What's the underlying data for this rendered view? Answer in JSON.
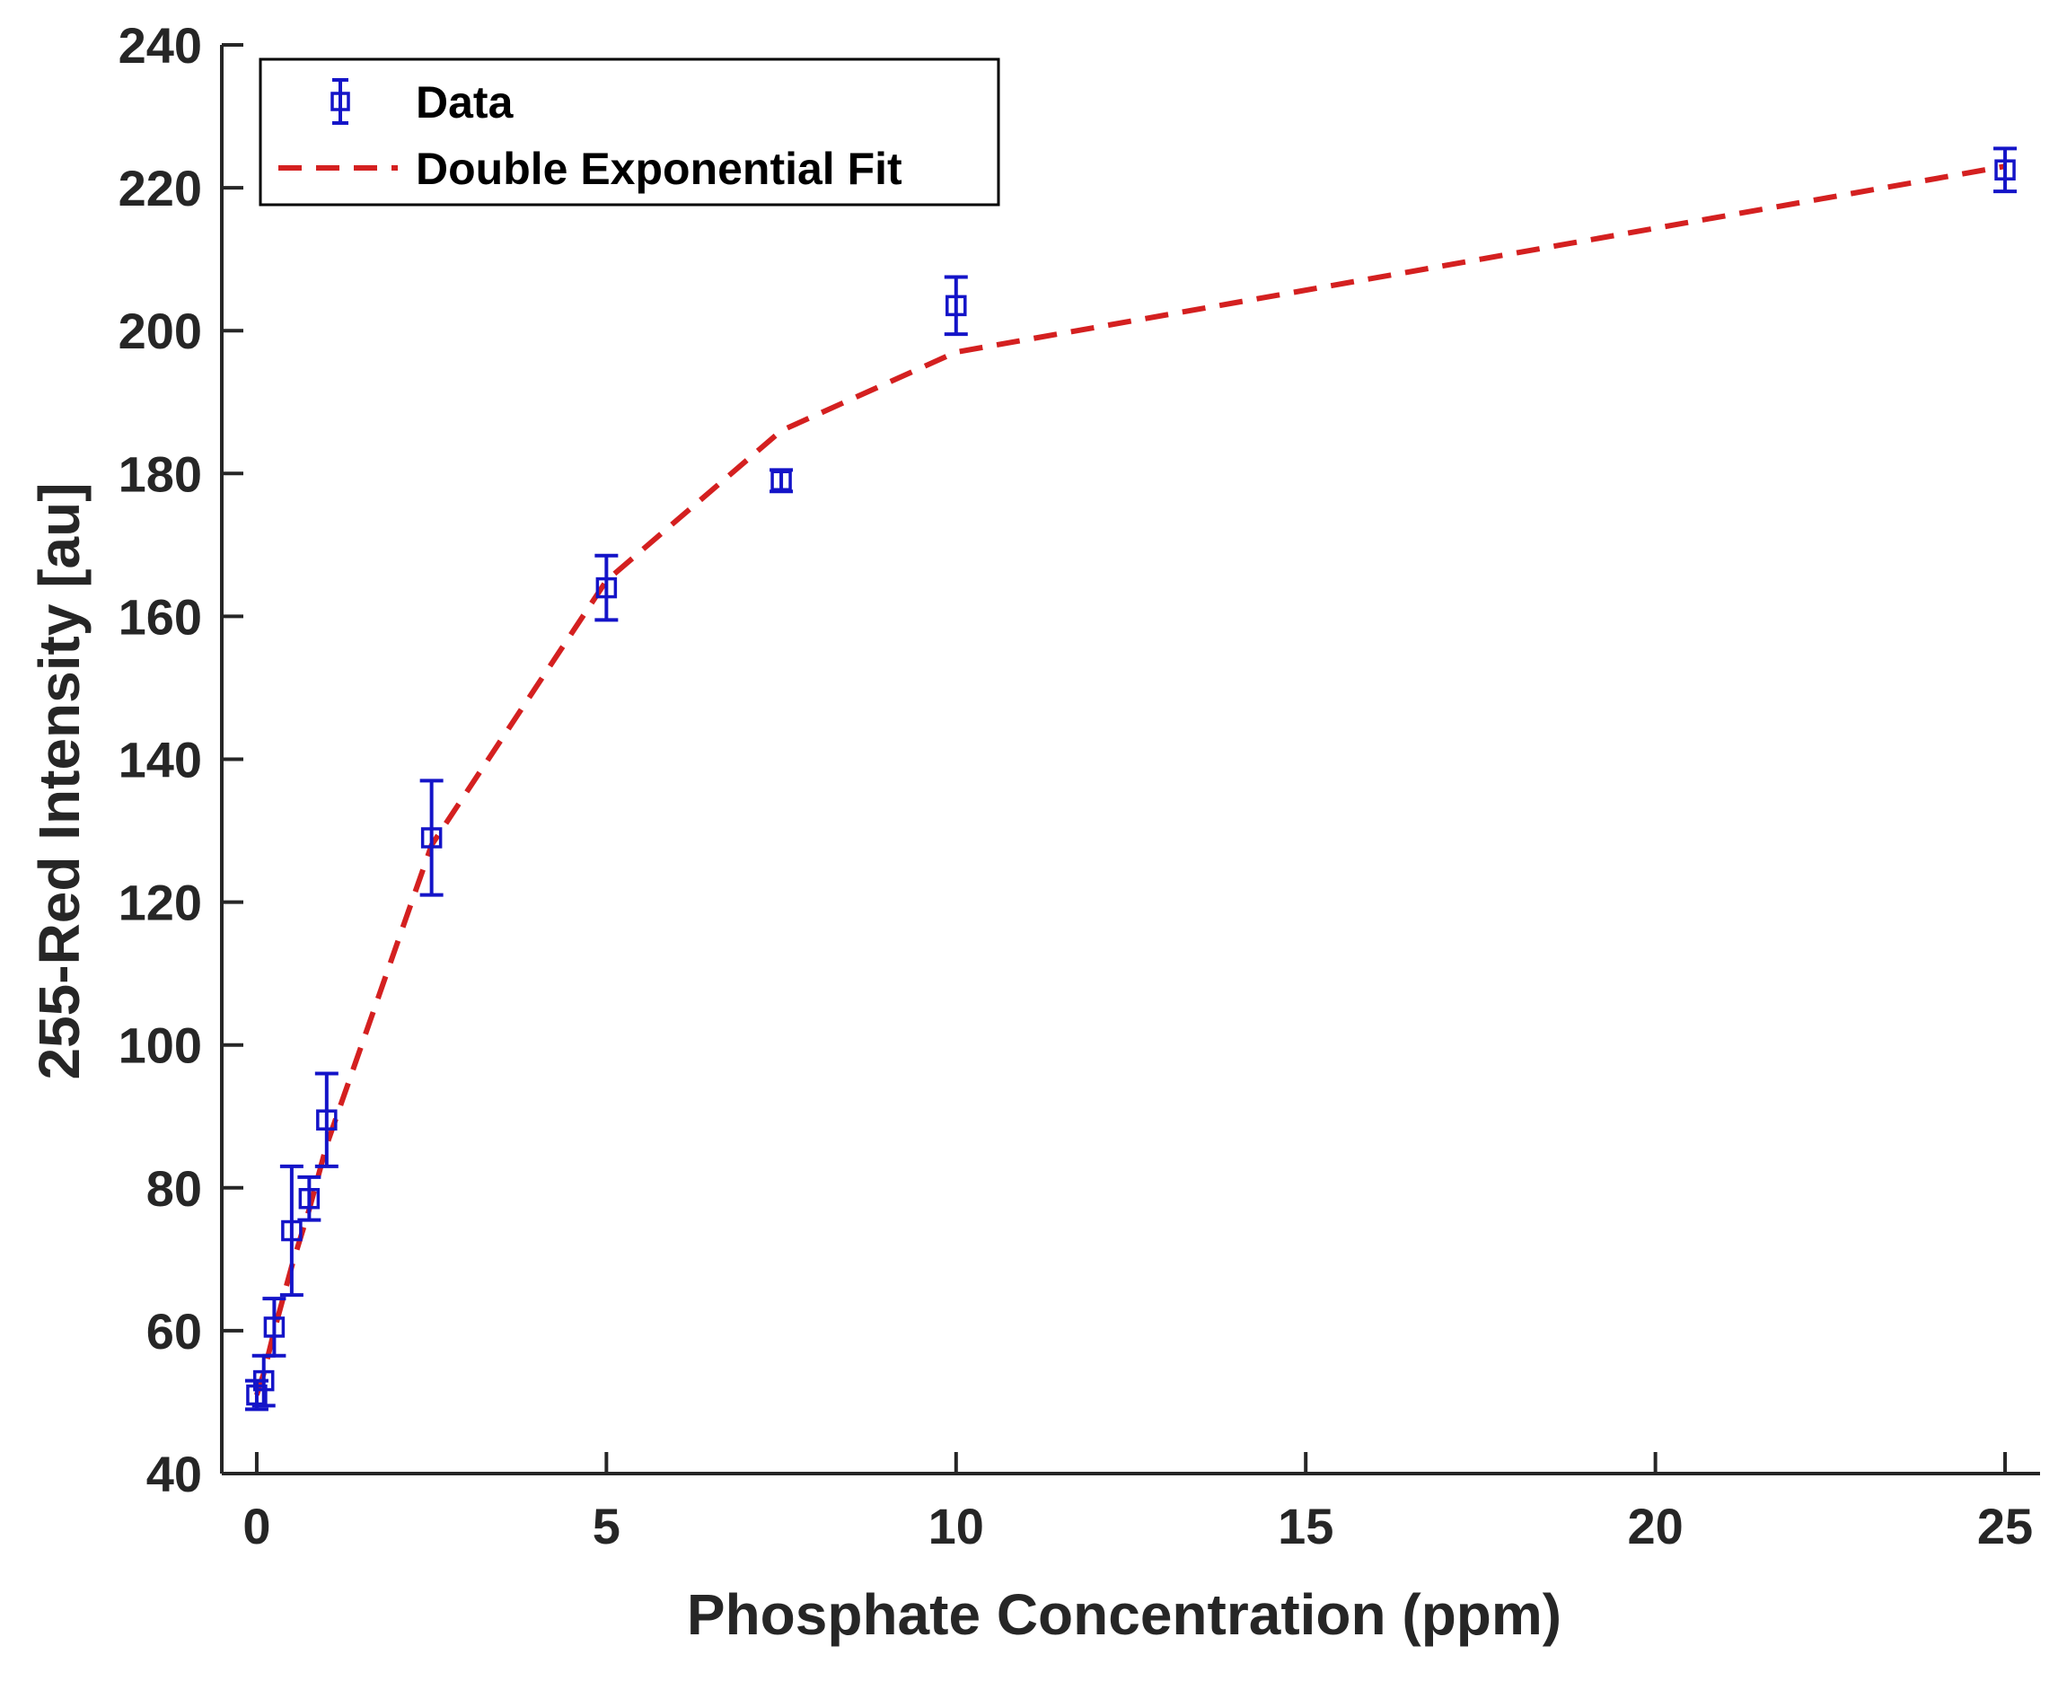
{
  "chart_data": {
    "type": "scatter",
    "title": "",
    "xlabel": "Phosphate Concentration (ppm)",
    "ylabel": "255-Red Intensity [au]",
    "xlim": [
      -0.5,
      25.5
    ],
    "ylim": [
      40,
      240
    ],
    "xticks": [
      0,
      5,
      10,
      15,
      20,
      25
    ],
    "yticks": [
      40,
      60,
      80,
      100,
      120,
      140,
      160,
      180,
      200,
      220,
      240
    ],
    "xtick_labels": [
      "0",
      "5",
      "10",
      "15",
      "20",
      "25"
    ],
    "ytick_labels": [
      "40",
      "60",
      "80",
      "100",
      "120",
      "140",
      "160",
      "180",
      "200",
      "220",
      "240"
    ],
    "grid": false,
    "legend_position": "top-left",
    "series": [
      {
        "name": "Data",
        "kind": "errorbar",
        "marker": "square",
        "color": "#1414c8",
        "x": [
          0,
          0.1,
          0.25,
          0.5,
          0.75,
          1,
          2.5,
          5,
          7.5,
          10,
          25
        ],
        "y": [
          51,
          53,
          60.5,
          74,
          78.5,
          89.5,
          129,
          164,
          179,
          203.5,
          222.5
        ],
        "err": [
          2,
          3.5,
          4,
          9,
          3,
          6.5,
          8,
          4.5,
          1.5,
          4,
          3
        ]
      },
      {
        "name": "Double Exponential Fit",
        "kind": "line",
        "style": "dashed",
        "color": "#d42020",
        "x": [
          0,
          0.1,
          0.25,
          0.5,
          0.75,
          1,
          2.5,
          5,
          7.5,
          10,
          25
        ],
        "y": [
          51,
          54,
          60,
          69,
          77,
          86,
          128,
          165,
          186,
          197,
          223
        ]
      }
    ]
  }
}
